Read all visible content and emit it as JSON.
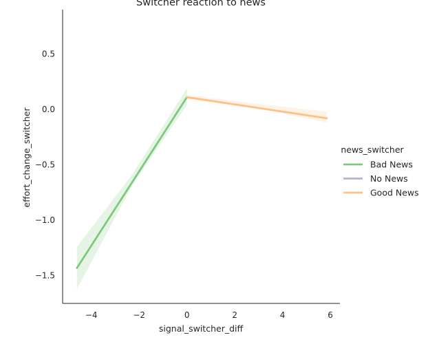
{
  "chart_data": {
    "type": "line",
    "title": "Switcher reaction to news",
    "xlabel": "signal_switcher_diff",
    "ylabel": "effort_change_switcher",
    "xlim": [
      -5.2,
      6.4
    ],
    "ylim": [
      -1.75,
      0.9
    ],
    "xticks": [
      -4,
      -2,
      0,
      2,
      4,
      6
    ],
    "yticks": [
      0.5,
      0.0,
      -0.5,
      -1.0,
      -1.5
    ],
    "xtick_labels": [
      "−4",
      "−2",
      "0",
      "2",
      "4",
      "6"
    ],
    "ytick_labels": [
      "0.5",
      "0.0",
      "−0.5",
      "−1.0",
      "−1.5"
    ],
    "grid": false,
    "legend": {
      "title": "news_switcher",
      "placement": "center-right",
      "entries": [
        "Bad News",
        "No News",
        "Good News"
      ]
    },
    "series": [
      {
        "name": "Bad News",
        "color": "#7fc97f",
        "x": [
          -4.6,
          0
        ],
        "y": [
          -1.43,
          0.11
        ],
        "ci_lower": [
          [
            -4.6,
            -1.62
          ],
          [
            -2.3,
            -0.69
          ],
          [
            0,
            0.04
          ]
        ],
        "ci_upper": [
          [
            -4.6,
            -1.24
          ],
          [
            -2.3,
            -0.59
          ],
          [
            0,
            0.19
          ]
        ]
      },
      {
        "name": "No News",
        "color": "#beaed4",
        "x": [],
        "y": []
      },
      {
        "name": "Good News",
        "color": "#fdc086",
        "x": [
          0,
          5.85
        ],
        "y": [
          0.11,
          -0.08
        ],
        "ci_lower": [
          [
            0,
            0.09
          ],
          [
            3,
            0.01
          ],
          [
            5.85,
            -0.12
          ]
        ],
        "ci_upper": [
          [
            0,
            0.13
          ],
          [
            3,
            0.05
          ],
          [
            5.85,
            -0.02
          ]
        ]
      }
    ]
  }
}
